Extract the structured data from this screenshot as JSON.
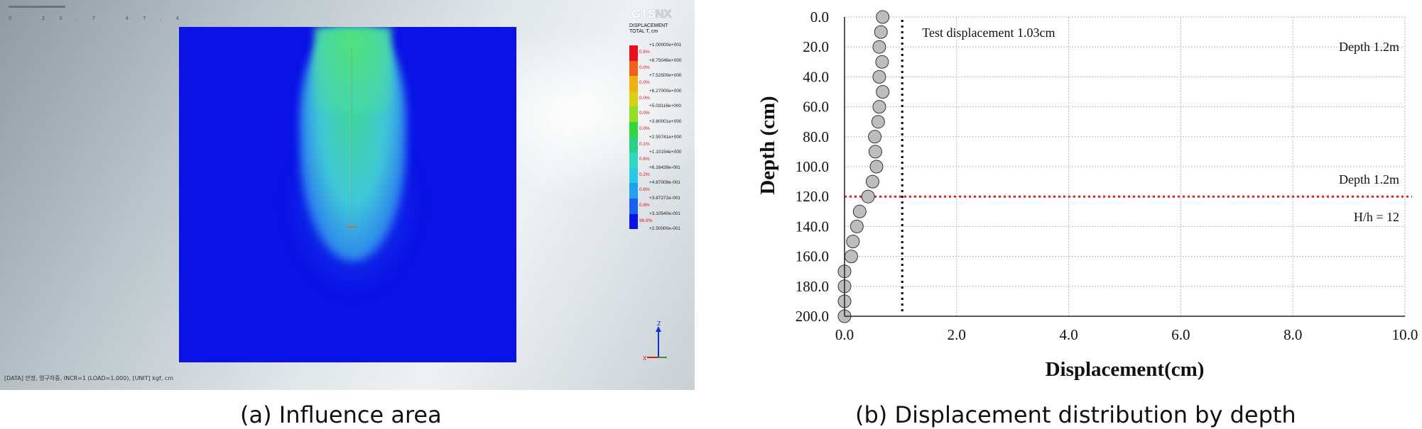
{
  "panel_a": {
    "caption": "(a) Influence area",
    "logo_gts": "GTS",
    "logo_nx": "NX",
    "legend_title_line1": "DISPLACEMENT",
    "legend_title_line2": "TOTAL T, cm",
    "legend_values": [
      "+1.00000e+001",
      "+8.75046e+000",
      "+7.52500e+000",
      "+6.27000e+000",
      "+5.03116e+000",
      "+3.80001e+000",
      "+2.55741e+000",
      "+1.10154e+000",
      "+6.16439e-001",
      "+4.87008e-001",
      "+3.87272e-001",
      "+3.10540e-001",
      "+2.50000e-001"
    ],
    "legend_percents": [
      "0.5%",
      "0.0%",
      "0.0%",
      "0.0%",
      "0.0%",
      "0.0%",
      "0.1%",
      "0.6%",
      "0.2%",
      "0.6%",
      "0.8%",
      "96.9%"
    ],
    "legend_colors": [
      "#e8101a",
      "#f0601a",
      "#f0b010",
      "#d8d010",
      "#90e020",
      "#30d840",
      "#28d088",
      "#30d8c0",
      "#28c8e8",
      "#20a0f0",
      "#1860f0",
      "#0a12e6"
    ],
    "toolbar_ticks": "0 23.7 47.4",
    "footer": "[DATA] 안정, 영구하중, INCR=1 (LOAD=1.000), [UNIT] kgf, cm",
    "axis_z": "Z",
    "axis_x": "X"
  },
  "chart_data": {
    "type": "scatter",
    "caption": "(b) Displacement distribution by depth",
    "xlabel": "Displacement(cm)",
    "ylabel": "Depth (cm)",
    "xlim": [
      0,
      10
    ],
    "ylim": [
      0,
      200
    ],
    "y_inverted": true,
    "grid": true,
    "x_ticks": [
      "0.0",
      "2.0",
      "4.0",
      "6.0",
      "8.0",
      "10.0"
    ],
    "y_ticks": [
      "0.0",
      "20.0",
      "40.0",
      "60.0",
      "80.0",
      "100.0",
      "120.0",
      "140.0",
      "160.0",
      "180.0",
      "200.0"
    ],
    "marker_color": "#bdbdbd",
    "series": [
      {
        "depth": [
          0,
          10,
          20,
          30,
          40,
          50,
          60,
          70,
          80,
          90,
          100,
          110,
          120,
          130,
          140,
          150,
          160,
          170,
          180,
          190,
          200
        ],
        "displacement": [
          0.68,
          0.65,
          0.62,
          0.67,
          0.62,
          0.68,
          0.62,
          0.6,
          0.54,
          0.55,
          0.57,
          0.5,
          0.42,
          0.27,
          0.22,
          0.15,
          0.12,
          0.0,
          0.0,
          0.0,
          0.0
        ]
      }
    ],
    "reference_lines": {
      "test_displacement": {
        "x": 1.03,
        "label": "Test displacement  1.03cm",
        "color": "#000000"
      },
      "depth_line": {
        "y": 120,
        "color": "#e8202a"
      }
    },
    "annotations": [
      "Depth 1.2m",
      "Depth 1.2m",
      "H/h = 12"
    ]
  }
}
